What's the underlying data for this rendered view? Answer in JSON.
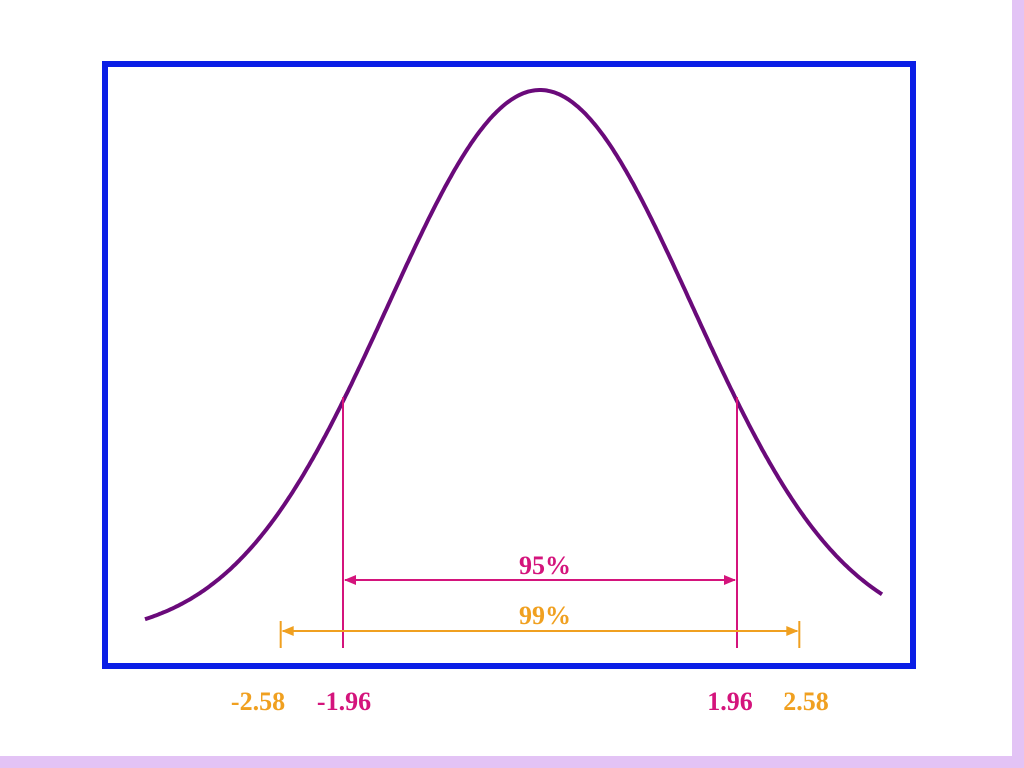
{
  "colors": {
    "frame": "#0a1ee6",
    "curve": "#6a0a7a",
    "ci95": "#d4147c",
    "ci99": "#f0a020",
    "slide_edge": "#e3c3f5",
    "background": "#ffffff"
  },
  "chart_data": {
    "type": "line",
    "title": "",
    "xlabel": "",
    "ylabel": "",
    "xlim": [
      -3.3,
      3.3
    ],
    "ylim": [
      0,
      0.4
    ],
    "grid": false,
    "curve": "standard normal density",
    "mean": 0,
    "sd": 1,
    "x": [
      -3.2,
      -3.0,
      -2.8,
      -2.6,
      -2.4,
      -2.2,
      -2.0,
      -1.8,
      -1.6,
      -1.4,
      -1.2,
      -1.0,
      -0.8,
      -0.6,
      -0.4,
      -0.2,
      0.0,
      0.2,
      0.4,
      0.6,
      0.8,
      1.0,
      1.2,
      1.4,
      1.6,
      1.8,
      2.0,
      2.2,
      2.4,
      2.6,
      2.8,
      3.0,
      3.2
    ],
    "y": [
      0.0024,
      0.0044,
      0.0079,
      0.0136,
      0.0224,
      0.0355,
      0.054,
      0.079,
      0.1109,
      0.1497,
      0.1942,
      0.242,
      0.2897,
      0.3332,
      0.3683,
      0.391,
      0.3989,
      0.391,
      0.3683,
      0.3332,
      0.2897,
      0.242,
      0.1942,
      0.1497,
      0.1109,
      0.079,
      0.054,
      0.0355,
      0.0224,
      0.0136,
      0.0079,
      0.0044,
      0.0024
    ],
    "intervals": [
      {
        "label": "95%",
        "lower": -1.96,
        "upper": 1.96,
        "lower_label": "-1.96",
        "upper_label": "1.96",
        "color": "#d4147c"
      },
      {
        "label": "99%",
        "lower": -2.58,
        "upper": 2.58,
        "lower_label": "-2.58",
        "upper_label": "2.58",
        "color": "#f0a020"
      }
    ]
  }
}
